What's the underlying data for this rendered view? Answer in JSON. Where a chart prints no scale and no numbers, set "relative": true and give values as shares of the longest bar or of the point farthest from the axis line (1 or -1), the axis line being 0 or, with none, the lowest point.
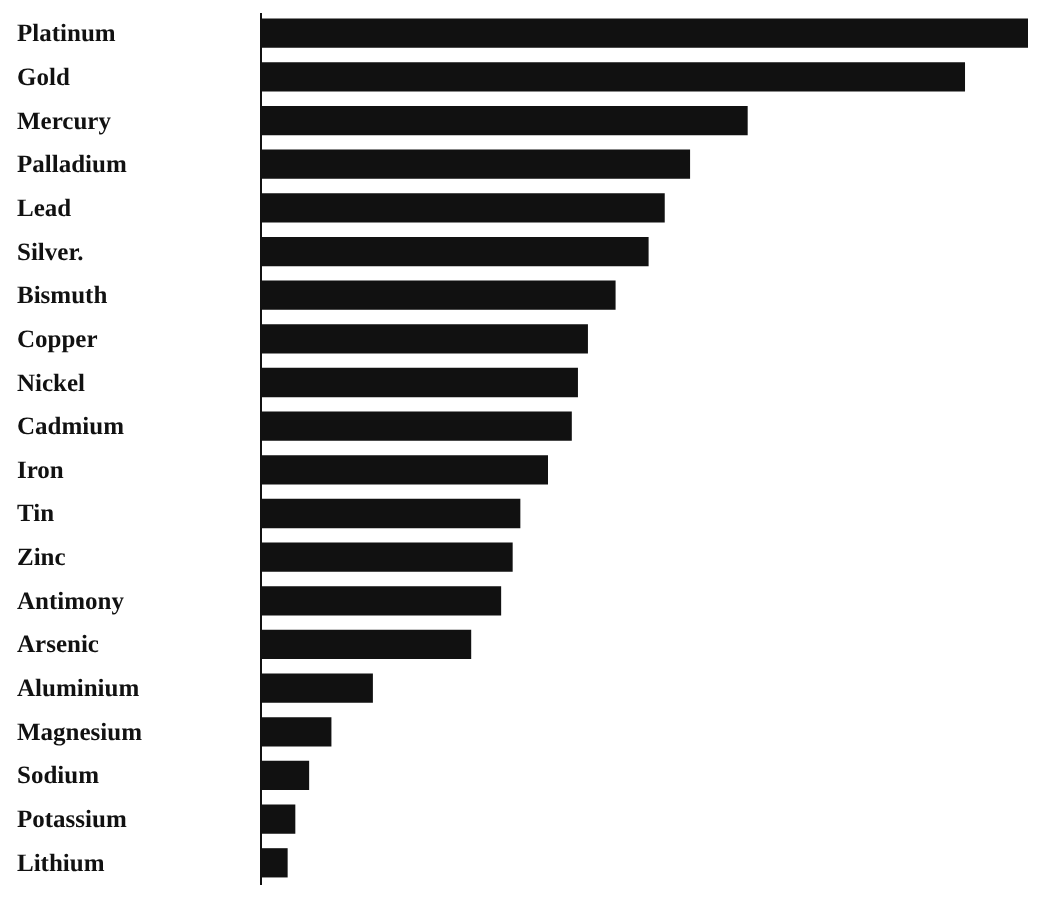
{
  "chart_data": {
    "type": "bar",
    "orientation": "horizontal",
    "relative": true,
    "categories": [
      "Platinum",
      "Gold",
      "Mercury",
      "Palladium",
      "Lead",
      "Silver.",
      "Bismuth",
      "Copper",
      "Nickel",
      "Cadmium",
      "Iron",
      "Tin",
      "Zinc",
      "Antimony",
      "Arsenic",
      "Aluminium",
      "Magnesium",
      "Sodium",
      "Potassium",
      "Lithium"
    ],
    "values": [
      1,
      0.918,
      0.635,
      0.56,
      0.527,
      0.506,
      0.463,
      0.427,
      0.414,
      0.406,
      0.375,
      0.339,
      0.329,
      0.314,
      0.275,
      0.147,
      0.093,
      0.064,
      0.046,
      0.036
    ],
    "color": "#111111"
  }
}
